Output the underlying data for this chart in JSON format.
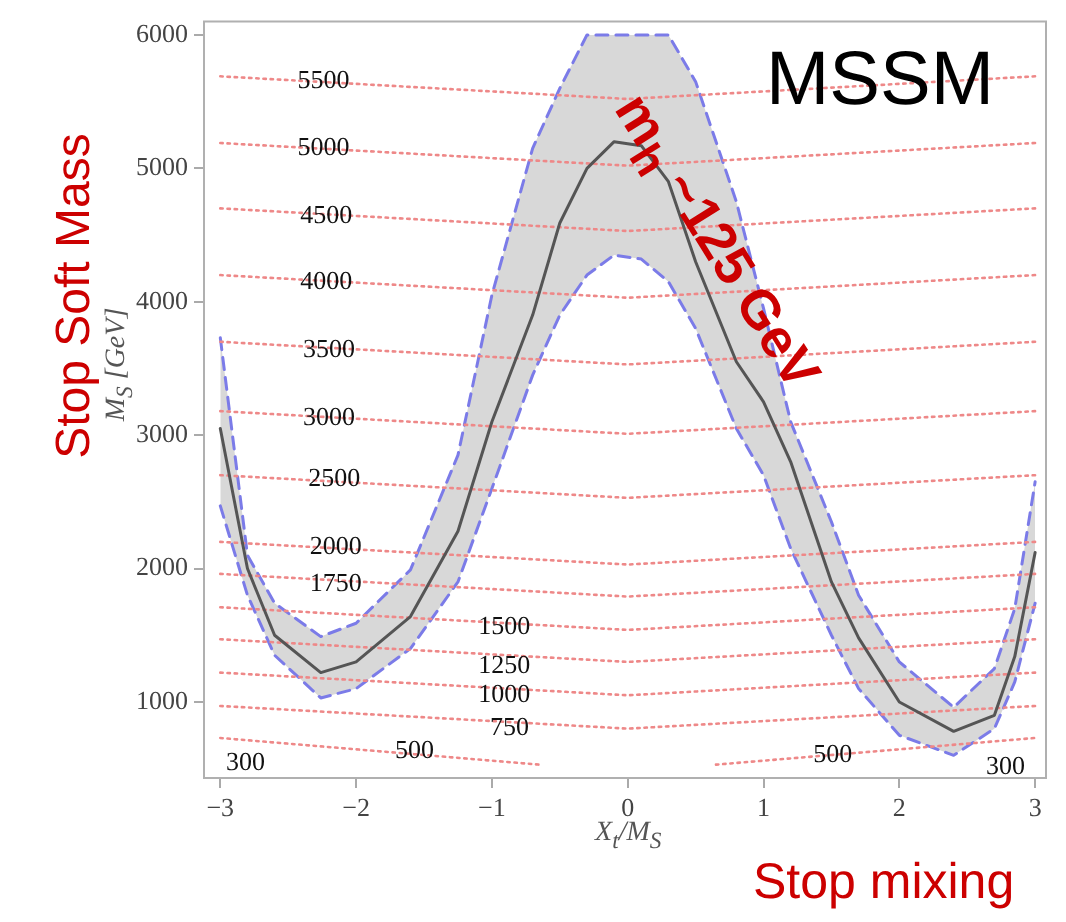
{
  "chart_data": {
    "type": "line",
    "xlabel": "X$_{t}$/M$_{S}$",
    "ylabel": "M$_{S}$ [GeV]",
    "xlim": [
      -3.12,
      3.08
    ],
    "ylim": [
      430,
      6100
    ],
    "xticks": [
      {
        "value": -3,
        "label": "−3"
      },
      {
        "value": -2,
        "label": "−2"
      },
      {
        "value": -1,
        "label": "−1"
      },
      0,
      1,
      2,
      3
    ],
    "yticks": [
      1000,
      2000,
      3000,
      4000,
      5000,
      6000
    ],
    "grid": false,
    "legend": false,
    "marker": "none",
    "series": [
      {
        "color": "#555555",
        "line_style": "solid",
        "x": [
          -3,
          -2.8,
          -2.6,
          -2.26,
          -2,
          -1.6,
          -1.25,
          -1,
          -0.7,
          -0.5,
          -0.3,
          -0.1,
          0.1,
          0.3,
          0.5,
          0.8,
          1.0,
          1.2,
          1.5,
          1.7,
          2.0,
          2.4,
          2.7,
          2.85,
          3
        ],
        "values": [
          3050,
          2000,
          1500,
          1220,
          1300,
          1640,
          2280,
          3100,
          3900,
          4590,
          5000,
          5200,
          5170,
          4900,
          4300,
          3550,
          3250,
          2800,
          1900,
          1480,
          1000,
          780,
          900,
          1340,
          2120
        ],
        "lower": [
          2470,
          1800,
          1350,
          1030,
          1100,
          1400,
          1900,
          2600,
          3450,
          3900,
          4200,
          4350,
          4320,
          4150,
          3800,
          3050,
          2700,
          2150,
          1500,
          1100,
          750,
          600,
          800,
          1150,
          1740
        ],
        "upper": [
          3730,
          2100,
          1740,
          1490,
          1590,
          1990,
          2850,
          4050,
          5150,
          5600,
          6000,
          6000,
          6000,
          6000,
          5650,
          4750,
          3950,
          3100,
          2350,
          1800,
          1300,
          960,
          1250,
          1700,
          2650
        ]
      },
      {
        "color": "#7b7be8",
        "line_style": "dashed",
        "x": [
          -3,
          -2.8,
          -2.6,
          -2.26,
          -2,
          -1.6,
          -1.25,
          -1,
          -0.7,
          -0.5,
          -0.3,
          -0.1,
          0.1,
          0.3,
          0.5,
          0.8,
          1.0,
          1.2,
          1.5,
          1.7,
          2.0,
          2.4,
          2.7,
          2.85,
          3
        ],
        "values": [
          3730,
          2100,
          1740,
          1490,
          1590,
          1990,
          2850,
          4050,
          5150,
          5600,
          6000,
          6000,
          6000,
          6000,
          5650,
          4750,
          3950,
          3100,
          2350,
          1800,
          1300,
          960,
          1250,
          1700,
          2650
        ]
      },
      {
        "color": "#7b7be8",
        "line_style": "dashed",
        "x": [
          -3,
          -2.8,
          -2.6,
          -2.26,
          -2,
          -1.6,
          -1.25,
          -1,
          -0.7,
          -0.5,
          -0.3,
          -0.1,
          0.1,
          0.3,
          0.5,
          0.8,
          1.0,
          1.2,
          1.5,
          1.7,
          2.0,
          2.4,
          2.7,
          2.85,
          3
        ],
        "values": [
          2470,
          1800,
          1350,
          1030,
          1100,
          1400,
          1900,
          2600,
          3450,
          3900,
          4200,
          4350,
          4320,
          4150,
          3800,
          3050,
          2700,
          2150,
          1500,
          1100,
          750,
          600,
          800,
          1150,
          1740
        ]
      },
      {
        "color": "#ee8888",
        "line_style": "dotted",
        "x": [
          -3,
          0,
          3
        ],
        "values": [
          5690,
          5520,
          5690
        ]
      },
      {
        "color": "#ee8888",
        "line_style": "dotted",
        "x": [
          -3,
          0,
          3
        ],
        "values": [
          5190,
          5020,
          5190
        ]
      },
      {
        "color": "#ee8888",
        "line_style": "dotted",
        "x": [
          -3,
          0,
          3
        ],
        "values": [
          4700,
          4530,
          4700
        ]
      },
      {
        "color": "#ee8888",
        "line_style": "dotted",
        "x": [
          -3,
          0,
          3
        ],
        "values": [
          4200,
          4030,
          4200
        ]
      },
      {
        "color": "#ee8888",
        "line_style": "dotted",
        "x": [
          -3,
          0,
          3
        ],
        "values": [
          3700,
          3530,
          3700
        ]
      },
      {
        "color": "#ee8888",
        "line_style": "dotted",
        "x": [
          -3,
          0,
          3
        ],
        "values": [
          3180,
          3010,
          3180
        ]
      },
      {
        "color": "#ee8888",
        "line_style": "dotted",
        "x": [
          -3,
          0,
          3
        ],
        "values": [
          2700,
          2530,
          2700
        ]
      },
      {
        "color": "#ee8888",
        "line_style": "dotted",
        "x": [
          -3,
          0,
          3
        ],
        "values": [
          2200,
          2030,
          2200
        ]
      },
      {
        "color": "#ee8888",
        "line_style": "dotted",
        "x": [
          -3,
          0,
          3
        ],
        "values": [
          1960,
          1790,
          1960
        ]
      },
      {
        "color": "#ee8888",
        "line_style": "dotted",
        "x": [
          -3,
          0,
          3
        ],
        "values": [
          1710,
          1540,
          1710
        ]
      },
      {
        "color": "#ee8888",
        "line_style": "dotted",
        "x": [
          -3,
          0,
          3
        ],
        "values": [
          1470,
          1300,
          1470
        ]
      },
      {
        "color": "#ee8888",
        "line_style": "dotted",
        "x": [
          -3,
          0,
          3
        ],
        "values": [
          1220,
          1050,
          1220
        ]
      },
      {
        "color": "#ee8888",
        "line_style": "dotted",
        "x": [
          -3,
          0,
          3
        ],
        "values": [
          970,
          800,
          970
        ]
      },
      {
        "color": "#ee8888",
        "line_style": "dotted",
        "x": [
          -3,
          -0.65,
          0,
          0.65,
          3
        ],
        "values": [
          730,
          530,
          null,
          530,
          730
        ]
      }
    ],
    "annotations": [
      "MSSM",
      "m$_{h}$ ~125 GeV",
      "Stop Soft Mass",
      "Stop mixing",
      "300",
      "300",
      {
        "text": "5500",
        "x": -2.24,
        "y": 5650
      },
      {
        "text": "5000",
        "x": -2.24,
        "y": 5150
      },
      {
        "text": "4500",
        "x": -2.22,
        "y": 4640
      },
      {
        "text": "4000",
        "x": -2.22,
        "y": 4150
      },
      {
        "text": "3500",
        "x": -2.2,
        "y": 3640
      },
      {
        "text": "3000",
        "x": -2.2,
        "y": 3130
      },
      {
        "text": "2500",
        "x": -2.16,
        "y": 2670
      },
      {
        "text": "2000",
        "x": -2.15,
        "y": 2160
      },
      {
        "text": "1750",
        "x": -2.15,
        "y": 1880
      },
      {
        "text": "1500",
        "x": -0.91,
        "y": 1560
      },
      {
        "text": "1250",
        "x": -0.91,
        "y": 1270
      },
      {
        "text": "1000",
        "x": -0.91,
        "y": 1050
      },
      {
        "text": "750",
        "x": -0.87,
        "y": 800
      },
      {
        "text": "500",
        "x": -1.57,
        "y": 630
      },
      {
        "text": "500",
        "x": 1.51,
        "y": 600
      }
    ]
  }
}
